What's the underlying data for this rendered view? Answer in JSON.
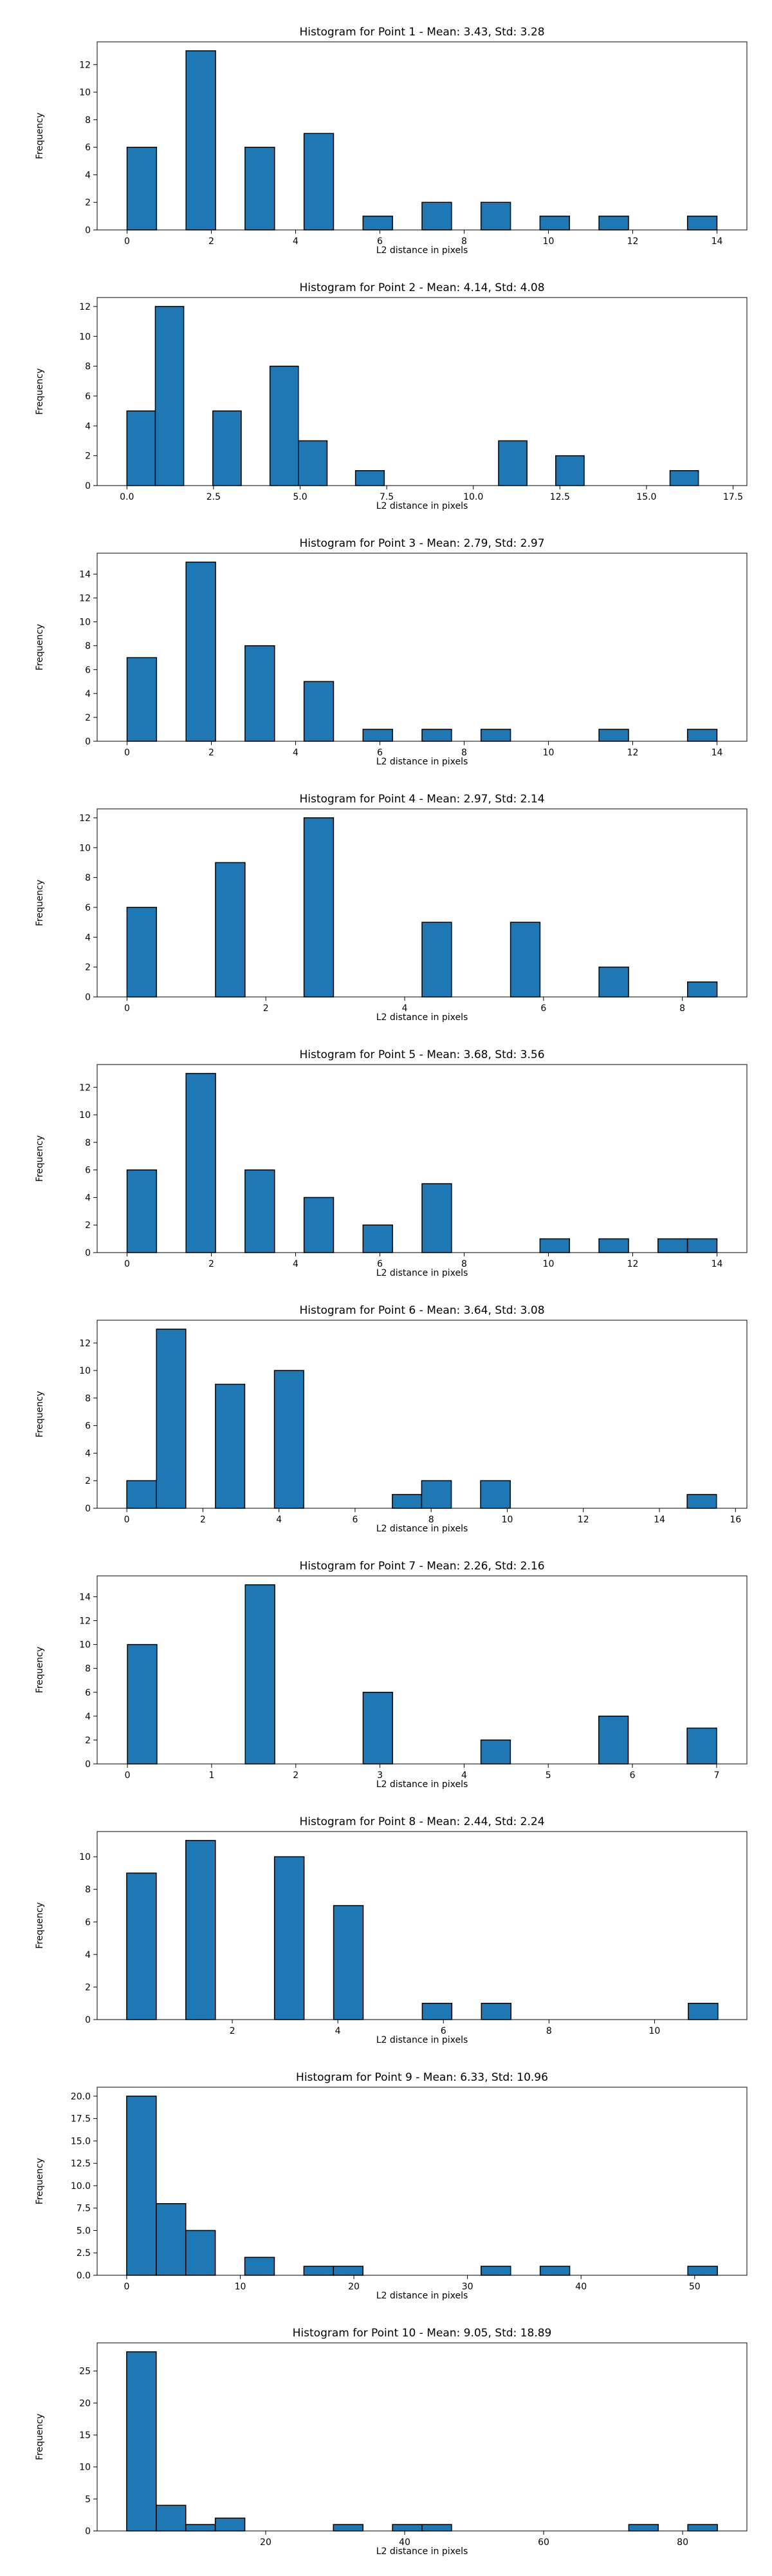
{
  "chart_data": [
    {
      "type": "bar",
      "title": "Histogram for Point 1 - Mean: 3.43, Std: 3.28",
      "xlabel": "L2 distance in pixels",
      "ylabel": "Frequency",
      "xlim": [
        -0.71,
        14.71
      ],
      "ylim": [
        0,
        13.65
      ],
      "xticks": [
        {
          "v": 0,
          "t": "0"
        },
        {
          "v": 2,
          "t": "2"
        },
        {
          "v": 4,
          "t": "4"
        },
        {
          "v": 6,
          "t": "6"
        },
        {
          "v": 8,
          "t": "8"
        },
        {
          "v": 10,
          "t": "10"
        },
        {
          "v": 12,
          "t": "12"
        },
        {
          "v": 14,
          "t": "14"
        }
      ],
      "yticks": [
        {
          "v": 0,
          "t": "0"
        },
        {
          "v": 2,
          "t": "2"
        },
        {
          "v": 4,
          "t": "4"
        },
        {
          "v": 6,
          "t": "6"
        },
        {
          "v": 8,
          "t": "8"
        },
        {
          "v": 10,
          "t": "10"
        },
        {
          "v": 12,
          "t": "12"
        }
      ],
      "bars": [
        {
          "x0": 0.0,
          "x1": 0.7,
          "h": 6
        },
        {
          "x0": 1.4,
          "x1": 2.1,
          "h": 13
        },
        {
          "x0": 2.8,
          "x1": 3.5,
          "h": 6
        },
        {
          "x0": 4.2,
          "x1": 4.9,
          "h": 7
        },
        {
          "x0": 5.6,
          "x1": 6.3,
          "h": 1
        },
        {
          "x0": 7.0,
          "x1": 7.7,
          "h": 2
        },
        {
          "x0": 8.4,
          "x1": 9.1,
          "h": 2
        },
        {
          "x0": 9.8,
          "x1": 10.5,
          "h": 1
        },
        {
          "x0": 11.2,
          "x1": 11.9,
          "h": 1
        },
        {
          "x0": 13.3,
          "x1": 14.0,
          "h": 1
        }
      ]
    },
    {
      "type": "bar",
      "title": "Histogram for Point 2 - Mean: 4.14, Std: 4.08",
      "xlabel": "L2 distance in pixels",
      "ylabel": "Frequency",
      "xlim": [
        -0.86,
        17.9
      ],
      "ylim": [
        0,
        12.6
      ],
      "xticks": [
        {
          "v": 0,
          "t": "0.0"
        },
        {
          "v": 2.5,
          "t": "2.5"
        },
        {
          "v": 5,
          "t": "5.0"
        },
        {
          "v": 7.5,
          "t": "7.5"
        },
        {
          "v": 10,
          "t": "10.0"
        },
        {
          "v": 12.5,
          "t": "12.5"
        },
        {
          "v": 15,
          "t": "15.0"
        },
        {
          "v": 17.5,
          "t": "17.5"
        }
      ],
      "yticks": [
        {
          "v": 0,
          "t": "0"
        },
        {
          "v": 2,
          "t": "2"
        },
        {
          "v": 4,
          "t": "4"
        },
        {
          "v": 6,
          "t": "6"
        },
        {
          "v": 8,
          "t": "8"
        },
        {
          "v": 10,
          "t": "10"
        },
        {
          "v": 12,
          "t": "12"
        }
      ],
      "bars": [
        {
          "x0": 0.0,
          "x1": 0.82,
          "h": 5
        },
        {
          "x0": 0.82,
          "x1": 1.64,
          "h": 12
        },
        {
          "x0": 2.48,
          "x1": 3.3,
          "h": 5
        },
        {
          "x0": 4.13,
          "x1": 4.95,
          "h": 8
        },
        {
          "x0": 4.95,
          "x1": 5.78,
          "h": 3
        },
        {
          "x0": 6.6,
          "x1": 7.43,
          "h": 1
        },
        {
          "x0": 10.73,
          "x1": 11.55,
          "h": 3
        },
        {
          "x0": 12.38,
          "x1": 13.2,
          "h": 2
        },
        {
          "x0": 15.68,
          "x1": 16.5,
          "h": 1
        }
      ]
    },
    {
      "type": "bar",
      "title": "Histogram for Point 3 - Mean: 2.79, Std: 2.97",
      "xlabel": "L2 distance in pixels",
      "ylabel": "Frequency",
      "xlim": [
        -0.71,
        14.71
      ],
      "ylim": [
        0,
        15.75
      ],
      "xticks": [
        {
          "v": 0,
          "t": "0"
        },
        {
          "v": 2,
          "t": "2"
        },
        {
          "v": 4,
          "t": "4"
        },
        {
          "v": 6,
          "t": "6"
        },
        {
          "v": 8,
          "t": "8"
        },
        {
          "v": 10,
          "t": "10"
        },
        {
          "v": 12,
          "t": "12"
        },
        {
          "v": 14,
          "t": "14"
        }
      ],
      "yticks": [
        {
          "v": 0,
          "t": "0"
        },
        {
          "v": 2,
          "t": "2"
        },
        {
          "v": 4,
          "t": "4"
        },
        {
          "v": 6,
          "t": "6"
        },
        {
          "v": 8,
          "t": "8"
        },
        {
          "v": 10,
          "t": "10"
        },
        {
          "v": 12,
          "t": "12"
        },
        {
          "v": 14,
          "t": "14"
        }
      ],
      "bars": [
        {
          "x0": 0.0,
          "x1": 0.7,
          "h": 7
        },
        {
          "x0": 1.4,
          "x1": 2.1,
          "h": 15
        },
        {
          "x0": 2.8,
          "x1": 3.5,
          "h": 8
        },
        {
          "x0": 4.2,
          "x1": 4.9,
          "h": 5
        },
        {
          "x0": 5.6,
          "x1": 6.3,
          "h": 1
        },
        {
          "x0": 7.0,
          "x1": 7.7,
          "h": 1
        },
        {
          "x0": 8.4,
          "x1": 9.1,
          "h": 1
        },
        {
          "x0": 11.2,
          "x1": 11.9,
          "h": 1
        },
        {
          "x0": 13.3,
          "x1": 14.0,
          "h": 1
        }
      ]
    },
    {
      "type": "bar",
      "title": "Histogram for Point 4 - Mean: 2.97, Std: 2.14",
      "xlabel": "L2 distance in pixels",
      "ylabel": "Frequency",
      "xlim": [
        -0.43,
        8.93
      ],
      "ylim": [
        0,
        12.6
      ],
      "xticks": [
        {
          "v": 0,
          "t": "0"
        },
        {
          "v": 2,
          "t": "2"
        },
        {
          "v": 4,
          "t": "4"
        },
        {
          "v": 6,
          "t": "6"
        },
        {
          "v": 8,
          "t": "8"
        }
      ],
      "yticks": [
        {
          "v": 0,
          "t": "0"
        },
        {
          "v": 2,
          "t": "2"
        },
        {
          "v": 4,
          "t": "4"
        },
        {
          "v": 6,
          "t": "6"
        },
        {
          "v": 8,
          "t": "8"
        },
        {
          "v": 10,
          "t": "10"
        },
        {
          "v": 12,
          "t": "12"
        }
      ],
      "bars": [
        {
          "x0": 0.0,
          "x1": 0.425,
          "h": 6
        },
        {
          "x0": 1.275,
          "x1": 1.7,
          "h": 9
        },
        {
          "x0": 2.55,
          "x1": 2.975,
          "h": 12
        },
        {
          "x0": 4.25,
          "x1": 4.675,
          "h": 5
        },
        {
          "x0": 5.525,
          "x1": 5.95,
          "h": 5
        },
        {
          "x0": 6.8,
          "x1": 7.225,
          "h": 2
        },
        {
          "x0": 8.075,
          "x1": 8.5,
          "h": 1
        }
      ]
    },
    {
      "type": "bar",
      "title": "Histogram for Point 5 - Mean: 3.68, Std: 3.56",
      "xlabel": "L2 distance in pixels",
      "ylabel": "Frequency",
      "xlim": [
        -0.71,
        14.71
      ],
      "ylim": [
        0,
        13.65
      ],
      "xticks": [
        {
          "v": 0,
          "t": "0"
        },
        {
          "v": 2,
          "t": "2"
        },
        {
          "v": 4,
          "t": "4"
        },
        {
          "v": 6,
          "t": "6"
        },
        {
          "v": 8,
          "t": "8"
        },
        {
          "v": 10,
          "t": "10"
        },
        {
          "v": 12,
          "t": "12"
        },
        {
          "v": 14,
          "t": "14"
        }
      ],
      "yticks": [
        {
          "v": 0,
          "t": "0"
        },
        {
          "v": 2,
          "t": "2"
        },
        {
          "v": 4,
          "t": "4"
        },
        {
          "v": 6,
          "t": "6"
        },
        {
          "v": 8,
          "t": "8"
        },
        {
          "v": 10,
          "t": "10"
        },
        {
          "v": 12,
          "t": "12"
        }
      ],
      "bars": [
        {
          "x0": 0.0,
          "x1": 0.7,
          "h": 6
        },
        {
          "x0": 1.4,
          "x1": 2.1,
          "h": 13
        },
        {
          "x0": 2.8,
          "x1": 3.5,
          "h": 6
        },
        {
          "x0": 4.2,
          "x1": 4.9,
          "h": 4
        },
        {
          "x0": 5.6,
          "x1": 6.3,
          "h": 2
        },
        {
          "x0": 7.0,
          "x1": 7.7,
          "h": 5
        },
        {
          "x0": 9.8,
          "x1": 10.5,
          "h": 1
        },
        {
          "x0": 11.2,
          "x1": 11.9,
          "h": 1
        },
        {
          "x0": 12.6,
          "x1": 13.3,
          "h": 1
        },
        {
          "x0": 13.3,
          "x1": 14.0,
          "h": 1
        }
      ]
    },
    {
      "type": "bar",
      "title": "Histogram for Point 6 - Mean: 3.64, Std: 3.08",
      "xlabel": "L2 distance in pixels",
      "ylabel": "Frequency",
      "xlim": [
        -0.78,
        16.3
      ],
      "ylim": [
        0,
        13.65
      ],
      "xticks": [
        {
          "v": 0,
          "t": "0"
        },
        {
          "v": 2,
          "t": "2"
        },
        {
          "v": 4,
          "t": "4"
        },
        {
          "v": 6,
          "t": "6"
        },
        {
          "v": 8,
          "t": "8"
        },
        {
          "v": 10,
          "t": "10"
        },
        {
          "v": 12,
          "t": "12"
        },
        {
          "v": 14,
          "t": "14"
        },
        {
          "v": 16,
          "t": "16"
        }
      ],
      "yticks": [
        {
          "v": 0,
          "t": "0"
        },
        {
          "v": 2,
          "t": "2"
        },
        {
          "v": 4,
          "t": "4"
        },
        {
          "v": 6,
          "t": "6"
        },
        {
          "v": 8,
          "t": "8"
        },
        {
          "v": 10,
          "t": "10"
        },
        {
          "v": 12,
          "t": "12"
        }
      ],
      "bars": [
        {
          "x0": 0.0,
          "x1": 0.78,
          "h": 2
        },
        {
          "x0": 0.78,
          "x1": 1.55,
          "h": 13
        },
        {
          "x0": 2.33,
          "x1": 3.1,
          "h": 9
        },
        {
          "x0": 3.88,
          "x1": 4.65,
          "h": 10
        },
        {
          "x0": 6.98,
          "x1": 7.75,
          "h": 1
        },
        {
          "x0": 7.75,
          "x1": 8.53,
          "h": 2
        },
        {
          "x0": 9.3,
          "x1": 10.08,
          "h": 2
        },
        {
          "x0": 14.73,
          "x1": 15.5,
          "h": 1
        }
      ]
    },
    {
      "type": "bar",
      "title": "Histogram for Point 7 - Mean: 2.26, Std: 2.16",
      "xlabel": "L2 distance in pixels",
      "ylabel": "Frequency",
      "xlim": [
        -0.36,
        7.36
      ],
      "ylim": [
        0,
        15.75
      ],
      "xticks": [
        {
          "v": 0,
          "t": "0"
        },
        {
          "v": 1,
          "t": "1"
        },
        {
          "v": 2,
          "t": "2"
        },
        {
          "v": 3,
          "t": "3"
        },
        {
          "v": 4,
          "t": "4"
        },
        {
          "v": 5,
          "t": "5"
        },
        {
          "v": 6,
          "t": "6"
        },
        {
          "v": 7,
          "t": "7"
        }
      ],
      "yticks": [
        {
          "v": 0,
          "t": "0"
        },
        {
          "v": 2,
          "t": "2"
        },
        {
          "v": 4,
          "t": "4"
        },
        {
          "v": 6,
          "t": "6"
        },
        {
          "v": 8,
          "t": "8"
        },
        {
          "v": 10,
          "t": "10"
        },
        {
          "v": 12,
          "t": "12"
        },
        {
          "v": 14,
          "t": "14"
        }
      ],
      "bars": [
        {
          "x0": 0.0,
          "x1": 0.35,
          "h": 10
        },
        {
          "x0": 1.4,
          "x1": 1.75,
          "h": 15
        },
        {
          "x0": 2.8,
          "x1": 3.15,
          "h": 6
        },
        {
          "x0": 4.2,
          "x1": 4.55,
          "h": 2
        },
        {
          "x0": 5.6,
          "x1": 5.95,
          "h": 4
        },
        {
          "x0": 6.65,
          "x1": 7.0,
          "h": 3
        }
      ]
    },
    {
      "type": "bar",
      "title": "Histogram for Point 8 - Mean: 2.44, Std: 2.24",
      "xlabel": "L2 distance in pixels",
      "ylabel": "Frequency",
      "xlim": [
        -0.56,
        11.75
      ],
      "ylim": [
        0,
        11.55
      ],
      "xticks": [
        {
          "v": 2,
          "t": "2"
        },
        {
          "v": 4,
          "t": "4"
        },
        {
          "v": 6,
          "t": "6"
        },
        {
          "v": 8,
          "t": "8"
        },
        {
          "v": 10,
          "t": "10"
        }
      ],
      "yticks": [
        {
          "v": 0,
          "t": "0"
        },
        {
          "v": 2,
          "t": "2"
        },
        {
          "v": 4,
          "t": "4"
        },
        {
          "v": 6,
          "t": "6"
        },
        {
          "v": 8,
          "t": "8"
        },
        {
          "v": 10,
          "t": "10"
        }
      ],
      "bars": [
        {
          "x0": 0.0,
          "x1": 0.56,
          "h": 9
        },
        {
          "x0": 1.12,
          "x1": 1.68,
          "h": 11
        },
        {
          "x0": 2.8,
          "x1": 3.36,
          "h": 10
        },
        {
          "x0": 3.92,
          "x1": 4.48,
          "h": 7
        },
        {
          "x0": 5.6,
          "x1": 6.16,
          "h": 1
        },
        {
          "x0": 6.72,
          "x1": 7.28,
          "h": 1
        },
        {
          "x0": 10.64,
          "x1": 11.2,
          "h": 1
        }
      ]
    },
    {
      "type": "bar",
      "title": "Histogram for Point 9 - Mean: 6.33, Std: 10.96",
      "xlabel": "L2 distance in pixels",
      "ylabel": "Frequency",
      "xlim": [
        -2.6,
        54.6
      ],
      "ylim": [
        0,
        21
      ],
      "xticks": [
        {
          "v": 0,
          "t": "0"
        },
        {
          "v": 10,
          "t": "10"
        },
        {
          "v": 20,
          "t": "20"
        },
        {
          "v": 30,
          "t": "30"
        },
        {
          "v": 40,
          "t": "40"
        },
        {
          "v": 50,
          "t": "50"
        }
      ],
      "yticks": [
        {
          "v": 0,
          "t": "0.0"
        },
        {
          "v": 2.5,
          "t": "2.5"
        },
        {
          "v": 5,
          "t": "5.0"
        },
        {
          "v": 7.5,
          "t": "7.5"
        },
        {
          "v": 10,
          "t": "10.0"
        },
        {
          "v": 12.5,
          "t": "12.5"
        },
        {
          "v": 15,
          "t": "15.0"
        },
        {
          "v": 17.5,
          "t": "17.5"
        },
        {
          "v": 20,
          "t": "20.0"
        }
      ],
      "bars": [
        {
          "x0": 0.0,
          "x1": 2.6,
          "h": 20
        },
        {
          "x0": 2.6,
          "x1": 5.2,
          "h": 8
        },
        {
          "x0": 5.2,
          "x1": 7.8,
          "h": 5
        },
        {
          "x0": 10.4,
          "x1": 13.0,
          "h": 2
        },
        {
          "x0": 15.6,
          "x1": 18.2,
          "h": 1
        },
        {
          "x0": 18.2,
          "x1": 20.8,
          "h": 1
        },
        {
          "x0": 31.2,
          "x1": 33.8,
          "h": 1
        },
        {
          "x0": 36.4,
          "x1": 39.0,
          "h": 1
        },
        {
          "x0": 49.4,
          "x1": 52.0,
          "h": 1
        }
      ]
    },
    {
      "type": "bar",
      "title": "Histogram for Point 10 - Mean: 9.05, Std: 18.89",
      "xlabel": "L2 distance in pixels",
      "ylabel": "Frequency",
      "xlim": [
        -4.25,
        89.25
      ],
      "ylim": [
        0,
        29.4
      ],
      "xticks": [
        {
          "v": 20,
          "t": "20"
        },
        {
          "v": 40,
          "t": "40"
        },
        {
          "v": 60,
          "t": "60"
        },
        {
          "v": 80,
          "t": "80"
        }
      ],
      "yticks": [
        {
          "v": 0,
          "t": "0"
        },
        {
          "v": 5,
          "t": "5"
        },
        {
          "v": 10,
          "t": "10"
        },
        {
          "v": 15,
          "t": "15"
        },
        {
          "v": 20,
          "t": "20"
        },
        {
          "v": 25,
          "t": "25"
        }
      ],
      "bars": [
        {
          "x0": 0.0,
          "x1": 4.25,
          "h": 28
        },
        {
          "x0": 4.25,
          "x1": 8.5,
          "h": 4
        },
        {
          "x0": 8.5,
          "x1": 12.75,
          "h": 1
        },
        {
          "x0": 12.75,
          "x1": 17.0,
          "h": 2
        },
        {
          "x0": 29.75,
          "x1": 34.0,
          "h": 1
        },
        {
          "x0": 38.25,
          "x1": 42.5,
          "h": 1
        },
        {
          "x0": 42.5,
          "x1": 46.75,
          "h": 1
        },
        {
          "x0": 72.25,
          "x1": 76.5,
          "h": 1
        },
        {
          "x0": 80.75,
          "x1": 85.0,
          "h": 1
        }
      ]
    }
  ]
}
